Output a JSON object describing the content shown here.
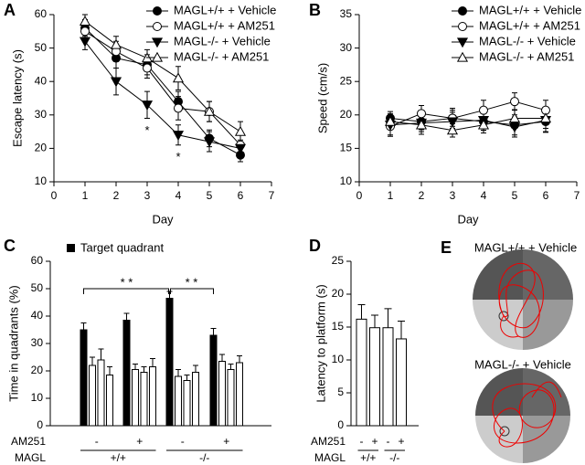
{
  "chart_data": [
    {
      "type": "line",
      "panel_label": "A",
      "x": [
        1,
        2,
        3,
        4,
        5,
        6
      ],
      "xlim": [
        0,
        7
      ],
      "xticks": [
        0,
        1,
        2,
        3,
        4,
        5,
        6,
        7
      ],
      "ylim": [
        10,
        60
      ],
      "yticks": [
        10,
        20,
        30,
        40,
        50,
        60
      ],
      "xlabel": "Day",
      "ylabel": "Escape latency (s)",
      "annotations": [
        "*",
        "*"
      ],
      "series": [
        {
          "name": "MAGL+/+ + Vehicle",
          "marker": "filled-circle",
          "color": "#000000",
          "values": [
            56,
            47,
            45,
            34,
            23,
            18
          ],
          "errors": [
            2.5,
            3,
            3,
            3,
            2.5,
            2
          ]
        },
        {
          "name": "MAGL+/+ + AM251",
          "marker": "open-circle",
          "color": "#000000",
          "values": [
            55,
            49,
            44,
            32,
            31,
            21
          ],
          "errors": [
            3,
            3,
            3,
            3.5,
            3,
            3
          ]
        },
        {
          "name": "MAGL-/- + Vehicle",
          "marker": "filled-triangle-down",
          "color": "#000000",
          "values": [
            52,
            40,
            33,
            24,
            22,
            20
          ],
          "errors": [
            2.5,
            4,
            4,
            3,
            3,
            2.5
          ]
        },
        {
          "name": "MAGL-/- + AM251",
          "marker": "open-triangle-up",
          "color": "#000000",
          "values": [
            58,
            51,
            47,
            41,
            31,
            25
          ],
          "errors": [
            2,
            2.5,
            2.5,
            3.5,
            3,
            3
          ]
        }
      ]
    },
    {
      "type": "line",
      "panel_label": "B",
      "x": [
        1,
        2,
        3,
        4,
        5,
        6
      ],
      "xlim": [
        0,
        7
      ],
      "xticks": [
        0,
        1,
        2,
        3,
        4,
        5,
        6,
        7
      ],
      "ylim": [
        10,
        35
      ],
      "yticks": [
        10,
        15,
        20,
        25,
        30,
        35
      ],
      "xlabel": "Day",
      "ylabel": "Speed (cm/s)",
      "series": [
        {
          "name": "MAGL+/+ + Vehicle",
          "marker": "filled-circle",
          "color": "#000000",
          "values": [
            19.5,
            19,
            19.5,
            19,
            18.5,
            19
          ],
          "errors": [
            1,
            1.2,
            1.2,
            1.3,
            1.5,
            1.5
          ]
        },
        {
          "name": "MAGL+/+ + AM251",
          "marker": "open-circle",
          "color": "#000000",
          "values": [
            18.3,
            20.2,
            19.5,
            20.7,
            22,
            20.7
          ],
          "errors": [
            1.5,
            1.2,
            1.5,
            1.5,
            1.3,
            1.5
          ]
        },
        {
          "name": "MAGL-/- + Vehicle",
          "marker": "filled-triangle-down",
          "color": "#000000",
          "values": [
            18.5,
            18.8,
            19,
            19.2,
            18.2,
            19.2
          ],
          "errors": [
            1.5,
            1.3,
            1.4,
            1.5,
            1.5,
            1.8
          ]
        },
        {
          "name": "MAGL-/- + AM251",
          "marker": "open-triangle-up",
          "color": "#000000",
          "values": [
            19,
            18.5,
            17.7,
            18.5,
            19.5,
            19.5
          ],
          "errors": [
            1.2,
            1.4,
            1,
            1.2,
            1.3,
            1.5
          ]
        }
      ]
    },
    {
      "type": "grouped-bar",
      "panel_label": "C",
      "legend": "Target quadrant",
      "bar_colors": [
        "#000000",
        "#ffffff",
        "#ffffff",
        "#ffffff"
      ],
      "groups": [
        {
          "values": [
            35,
            22,
            24,
            18.5
          ],
          "errors": [
            2.5,
            3,
            4,
            3
          ]
        },
        {
          "values": [
            38.5,
            20.5,
            19.5,
            21.5
          ],
          "errors": [
            2.5,
            2,
            2,
            3
          ]
        },
        {
          "values": [
            46.5,
            18,
            16.5,
            19.5
          ],
          "errors": [
            2.5,
            2.5,
            2,
            2.5
          ]
        },
        {
          "values": [
            33,
            23.5,
            20.5,
            23
          ],
          "errors": [
            2.5,
            2.5,
            2,
            2.5
          ]
        }
      ],
      "ylim": [
        0,
        60
      ],
      "yticks": [
        0,
        10,
        20,
        30,
        40,
        50,
        60
      ],
      "ylabel": "Time in quadrants (%)",
      "significance": [
        "* *",
        "* *"
      ],
      "row_labels": [
        "AM251",
        "MAGL"
      ],
      "am251": [
        "-",
        "+",
        "-",
        "+"
      ],
      "magl": [
        "+/+",
        "-/-"
      ]
    },
    {
      "type": "bar",
      "panel_label": "D",
      "color": "#ffffff",
      "values": [
        16.2,
        14.9,
        14.9,
        13.2
      ],
      "errors": [
        2.2,
        1.9,
        2.9,
        2.7
      ],
      "ylim": [
        0,
        25
      ],
      "yticks": [
        0,
        5,
        10,
        15,
        20,
        25
      ],
      "ylabel": "Latency to platform (s)",
      "row_labels": [
        "AM251",
        "MAGL"
      ],
      "am251": [
        "-",
        "+",
        "-",
        "+"
      ],
      "magl": [
        "+/+",
        "-/-"
      ]
    }
  ],
  "track_figure": {
    "panel_label": "E",
    "titles": [
      "MAGL+/+ + Vehicle",
      "MAGL-/- + Vehicle"
    ]
  }
}
